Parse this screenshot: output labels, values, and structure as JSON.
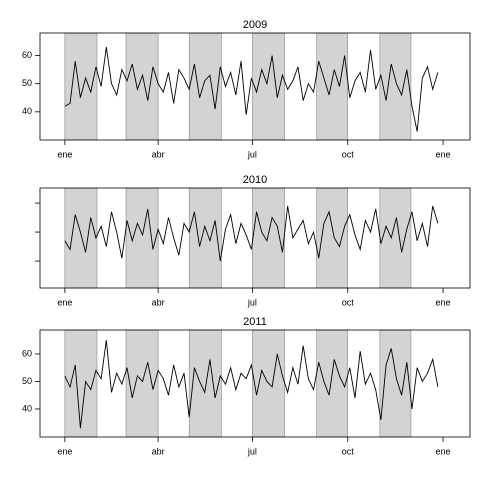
{
  "chart_data": [
    {
      "type": "line",
      "title": "2009",
      "color": "#000000",
      "shade_color": "#d3d3d3",
      "show_ytick_labels": true,
      "xlim": [
        -23,
        392
      ],
      "ylim": [
        30,
        68
      ],
      "xticks": [
        {
          "value": 1,
          "label": "ene"
        },
        {
          "value": 91,
          "label": "abr"
        },
        {
          "value": 182,
          "label": "jul"
        },
        {
          "value": 274,
          "label": "oct"
        },
        {
          "value": 366,
          "label": "ene"
        }
      ],
      "yticks": [
        40,
        50,
        60
      ],
      "shaded_spans": [
        [
          1,
          32
        ],
        [
          60,
          91
        ],
        [
          121,
          152
        ],
        [
          182,
          213
        ],
        [
          244,
          274
        ],
        [
          305,
          335
        ]
      ],
      "x": [
        1,
        6,
        11,
        16,
        21,
        26,
        31,
        36,
        41,
        46,
        51,
        56,
        61,
        66,
        71,
        76,
        81,
        86,
        91,
        96,
        101,
        106,
        111,
        116,
        121,
        126,
        131,
        136,
        141,
        146,
        151,
        156,
        161,
        166,
        171,
        176,
        181,
        186,
        191,
        196,
        201,
        206,
        211,
        216,
        221,
        226,
        231,
        236,
        241,
        246,
        251,
        256,
        261,
        266,
        271,
        276,
        281,
        286,
        291,
        296,
        301,
        306,
        311,
        316,
        321,
        326,
        331,
        336,
        341,
        346,
        351,
        356,
        361
      ],
      "values": [
        42,
        43,
        58,
        45,
        52,
        47,
        56,
        49,
        63,
        50,
        46,
        55,
        51,
        57,
        48,
        53,
        44,
        56,
        50,
        47,
        54,
        43,
        55,
        52,
        48,
        57,
        45,
        51,
        53,
        41,
        56,
        49,
        54,
        46,
        58,
        39,
        52,
        47,
        55,
        50,
        60,
        45,
        53,
        48,
        51,
        56,
        44,
        50,
        47,
        58,
        52,
        46,
        55,
        49,
        60,
        45,
        51,
        54,
        47,
        62,
        48,
        53,
        44,
        57,
        50,
        46,
        55,
        42,
        33,
        52,
        56,
        48,
        54
      ]
    },
    {
      "type": "line",
      "title": "2010",
      "color": "#000000",
      "shade_color": "#d3d3d3",
      "show_ytick_labels": false,
      "xlim": [
        -23,
        392
      ],
      "ylim": [
        30.7,
        65.2
      ],
      "xticks": [
        {
          "value": 1,
          "label": "ene"
        },
        {
          "value": 91,
          "label": "abr"
        },
        {
          "value": 182,
          "label": "jul"
        },
        {
          "value": 274,
          "label": "oct"
        },
        {
          "value": 366,
          "label": "ene"
        }
      ],
      "yticks": [
        40,
        50,
        60
      ],
      "shaded_spans": [
        [
          1,
          32
        ],
        [
          60,
          91
        ],
        [
          121,
          152
        ],
        [
          182,
          213
        ],
        [
          244,
          274
        ],
        [
          305,
          335
        ]
      ],
      "x": [
        1,
        6,
        11,
        16,
        21,
        26,
        31,
        36,
        41,
        46,
        51,
        56,
        61,
        66,
        71,
        76,
        81,
        86,
        91,
        96,
        101,
        106,
        111,
        116,
        121,
        126,
        131,
        136,
        141,
        146,
        151,
        156,
        161,
        166,
        171,
        176,
        181,
        186,
        191,
        196,
        201,
        206,
        211,
        216,
        221,
        226,
        231,
        236,
        241,
        246,
        251,
        256,
        261,
        266,
        271,
        276,
        281,
        286,
        291,
        296,
        301,
        306,
        311,
        316,
        321,
        326,
        331,
        336,
        341,
        346,
        351,
        356,
        361
      ],
      "values": [
        47,
        44,
        56,
        50,
        43,
        55,
        48,
        52,
        45,
        57,
        50,
        41,
        54,
        47,
        53,
        49,
        58,
        44,
        51,
        46,
        55,
        48,
        42,
        53,
        50,
        57,
        45,
        52,
        47,
        54,
        40,
        51,
        56,
        46,
        53,
        49,
        44,
        57,
        50,
        47,
        55,
        52,
        43,
        59,
        48,
        51,
        54,
        46,
        50,
        41,
        53,
        57,
        48,
        45,
        52,
        56,
        49,
        44,
        54,
        50,
        58,
        46,
        52,
        48,
        55,
        43,
        51,
        57,
        47,
        53,
        45,
        59,
        53
      ]
    },
    {
      "type": "line",
      "title": "2011",
      "color": "#000000",
      "shade_color": "#d3d3d3",
      "show_ytick_labels": true,
      "xlim": [
        -23,
        392
      ],
      "ylim": [
        29.8,
        68.7
      ],
      "xticks": [
        {
          "value": 1,
          "label": "ene"
        },
        {
          "value": 91,
          "label": "abr"
        },
        {
          "value": 182,
          "label": "jul"
        },
        {
          "value": 274,
          "label": "oct"
        },
        {
          "value": 366,
          "label": "ene"
        }
      ],
      "yticks": [
        40,
        50,
        60
      ],
      "shaded_spans": [
        [
          1,
          32
        ],
        [
          60,
          91
        ],
        [
          121,
          152
        ],
        [
          182,
          213
        ],
        [
          244,
          274
        ],
        [
          305,
          335
        ]
      ],
      "x": [
        1,
        6,
        11,
        16,
        21,
        26,
        31,
        36,
        41,
        46,
        51,
        56,
        61,
        66,
        71,
        76,
        81,
        86,
        91,
        96,
        101,
        106,
        111,
        116,
        121,
        126,
        131,
        136,
        141,
        146,
        151,
        156,
        161,
        166,
        171,
        176,
        181,
        186,
        191,
        196,
        201,
        206,
        211,
        216,
        221,
        226,
        231,
        236,
        241,
        246,
        251,
        256,
        261,
        266,
        271,
        276,
        281,
        286,
        291,
        296,
        301,
        306,
        311,
        316,
        321,
        326,
        331,
        336,
        341,
        346,
        351,
        356,
        361
      ],
      "values": [
        52,
        48,
        56,
        33,
        50,
        47,
        54,
        51,
        65,
        46,
        53,
        49,
        55,
        44,
        52,
        50,
        57,
        47,
        54,
        51,
        45,
        56,
        48,
        53,
        37,
        55,
        50,
        46,
        58,
        44,
        52,
        49,
        55,
        47,
        53,
        51,
        56,
        45,
        54,
        50,
        48,
        60,
        52,
        46,
        55,
        49,
        63,
        51,
        47,
        57,
        50,
        45,
        58,
        52,
        48,
        55,
        44,
        61,
        49,
        53,
        47,
        36,
        56,
        62,
        51,
        45,
        57,
        40,
        55,
        50,
        53,
        58,
        48
      ]
    }
  ]
}
